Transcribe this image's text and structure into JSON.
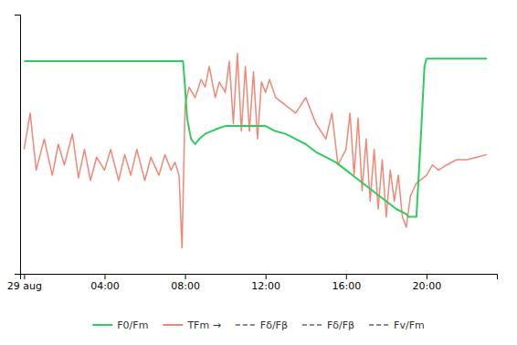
{
  "chart_data": {
    "type": "line",
    "xlim": [
      -0.2,
      23.5
    ],
    "xticks": [
      {
        "value": 0,
        "label": "29 aug"
      },
      {
        "value": 4,
        "label": "04:00"
      },
      {
        "value": 8,
        "label": "08:00"
      },
      {
        "value": 12,
        "label": "12:00"
      },
      {
        "value": 16,
        "label": "16:00"
      },
      {
        "value": 20,
        "label": "20:00"
      }
    ],
    "ylim": [
      0.0,
      1.0
    ],
    "tick_labels": "x",
    "grid": false,
    "legend": "bottom",
    "series": [
      {
        "name": "F0/Fm",
        "color": "#2ecc5e",
        "line_style": "solid",
        "x": [
          0,
          1,
          2,
          3,
          4,
          5,
          6,
          7,
          7.5,
          7.7,
          7.9,
          8.0,
          8.1,
          8.3,
          8.5,
          8.7,
          9.0,
          9.3,
          9.6,
          10.0,
          10.5,
          11.0,
          11.5,
          12.0,
          12.5,
          13.0,
          13.5,
          14.0,
          14.5,
          15.0,
          15.5,
          16.0,
          16.5,
          17.0,
          17.5,
          18.0,
          18.5,
          19.0,
          19.1,
          19.2,
          19.3,
          19.5,
          19.7,
          19.9,
          20.0,
          20.5,
          21.0,
          22.0,
          23.0
        ],
        "values": [
          0.82,
          0.82,
          0.82,
          0.82,
          0.82,
          0.82,
          0.82,
          0.82,
          0.82,
          0.82,
          0.82,
          0.72,
          0.6,
          0.52,
          0.5,
          0.52,
          0.54,
          0.55,
          0.56,
          0.57,
          0.57,
          0.57,
          0.57,
          0.57,
          0.55,
          0.54,
          0.52,
          0.5,
          0.47,
          0.45,
          0.43,
          0.4,
          0.37,
          0.34,
          0.31,
          0.28,
          0.25,
          0.23,
          0.22,
          0.22,
          0.22,
          0.22,
          0.5,
          0.8,
          0.83,
          0.83,
          0.83,
          0.83,
          0.83
        ]
      },
      {
        "name": "TFm →",
        "color": "#f08878",
        "line_style": "solid",
        "x": [
          0,
          0.3,
          0.6,
          1.0,
          1.4,
          1.7,
          2.0,
          2.4,
          2.7,
          3.0,
          3.3,
          3.6,
          4.0,
          4.3,
          4.7,
          5.0,
          5.3,
          5.6,
          6.0,
          6.3,
          6.7,
          7.0,
          7.3,
          7.5,
          7.7,
          7.85,
          8.0,
          8.2,
          8.5,
          8.8,
          9.0,
          9.2,
          9.5,
          9.7,
          10.0,
          10.2,
          10.4,
          10.6,
          10.8,
          11.0,
          11.2,
          11.4,
          11.6,
          11.8,
          12.0,
          12.2,
          12.5,
          13.0,
          13.5,
          14.0,
          14.5,
          15.0,
          15.3,
          15.6,
          16.0,
          16.2,
          16.4,
          16.6,
          16.8,
          17.0,
          17.2,
          17.4,
          17.6,
          17.8,
          18.0,
          18.2,
          18.4,
          18.6,
          18.8,
          19.0,
          19.2,
          19.5,
          20.0,
          20.3,
          20.6,
          21.0,
          21.5,
          22.0,
          22.5,
          23.0
        ],
        "values": [
          0.48,
          0.62,
          0.4,
          0.52,
          0.38,
          0.5,
          0.42,
          0.54,
          0.37,
          0.48,
          0.36,
          0.45,
          0.4,
          0.48,
          0.36,
          0.46,
          0.38,
          0.48,
          0.36,
          0.45,
          0.38,
          0.46,
          0.4,
          0.43,
          0.38,
          0.1,
          0.65,
          0.72,
          0.68,
          0.75,
          0.72,
          0.8,
          0.68,
          0.74,
          0.7,
          0.82,
          0.58,
          0.85,
          0.55,
          0.8,
          0.55,
          0.78,
          0.52,
          0.74,
          0.7,
          0.75,
          0.68,
          0.65,
          0.62,
          0.68,
          0.58,
          0.52,
          0.62,
          0.42,
          0.48,
          0.62,
          0.38,
          0.6,
          0.32,
          0.52,
          0.28,
          0.48,
          0.25,
          0.44,
          0.22,
          0.4,
          0.28,
          0.38,
          0.22,
          0.18,
          0.3,
          0.35,
          0.38,
          0.42,
          0.4,
          0.42,
          0.44,
          0.44,
          0.45,
          0.46
        ]
      },
      {
        "name": "Fδ/Fβ",
        "color": "#888888",
        "line_style": "dashed",
        "x": [],
        "values": []
      },
      {
        "name": "Fδ/Fβ",
        "color": "#888888",
        "line_style": "dashed",
        "x": [],
        "values": []
      },
      {
        "name": "Fv/Fm",
        "color": "#888888",
        "line_style": "dashed",
        "x": [],
        "values": []
      }
    ]
  }
}
